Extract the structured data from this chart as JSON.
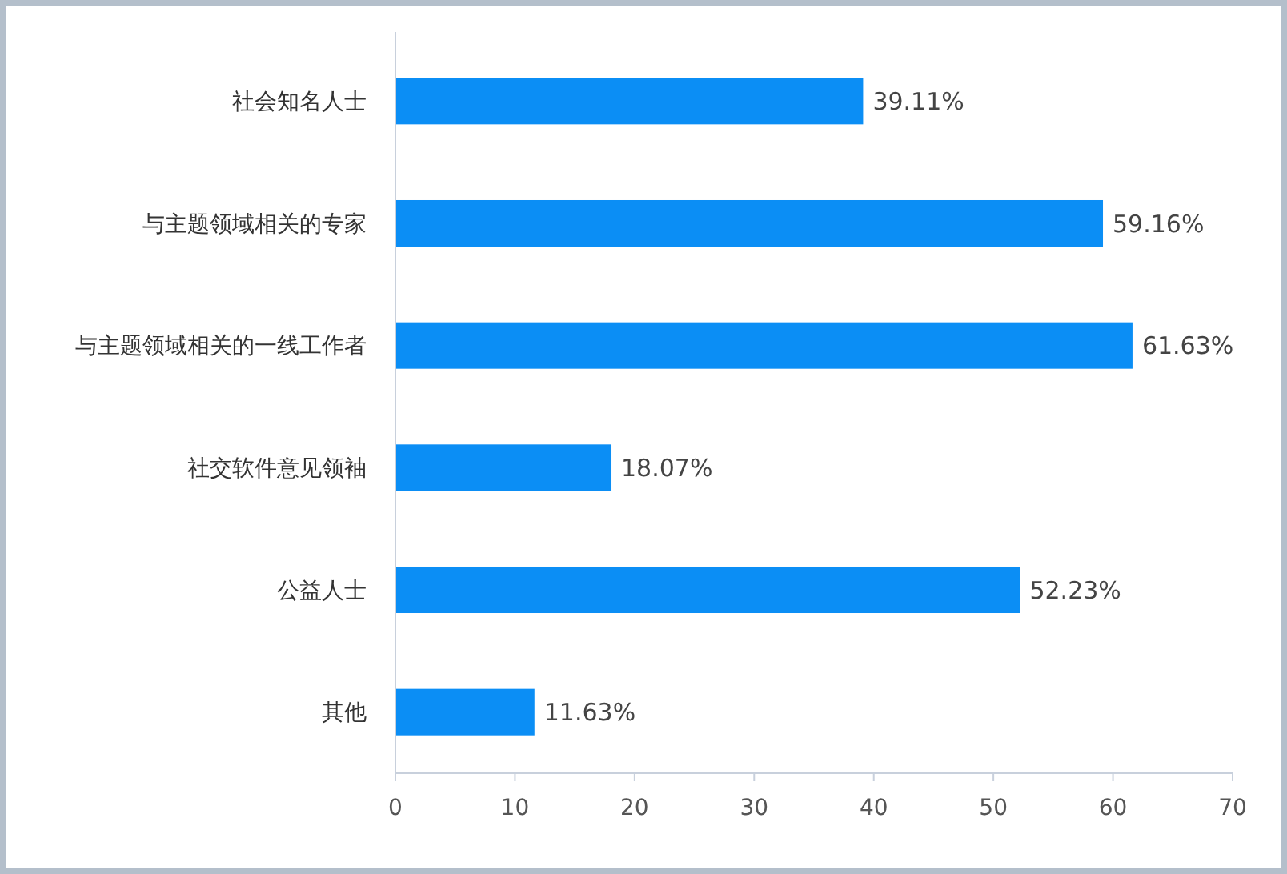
{
  "chart_data": {
    "type": "bar",
    "orientation": "horizontal",
    "categories": [
      "社会知名人士",
      "与主题领域相关的专家",
      "与主题领域相关的一线工作者",
      "社交软件意见领袖",
      "公益人士",
      "其他"
    ],
    "values": [
      39.11,
      59.16,
      61.63,
      18.07,
      52.23,
      11.63
    ],
    "value_labels": [
      "39.11%",
      "59.16%",
      "61.63%",
      "18.07%",
      "52.23%",
      "11.63%"
    ],
    "color": "#0b8ef5",
    "xlim": [
      0,
      70
    ],
    "xticks": [
      0,
      10,
      20,
      30,
      40,
      50,
      60,
      70
    ]
  }
}
